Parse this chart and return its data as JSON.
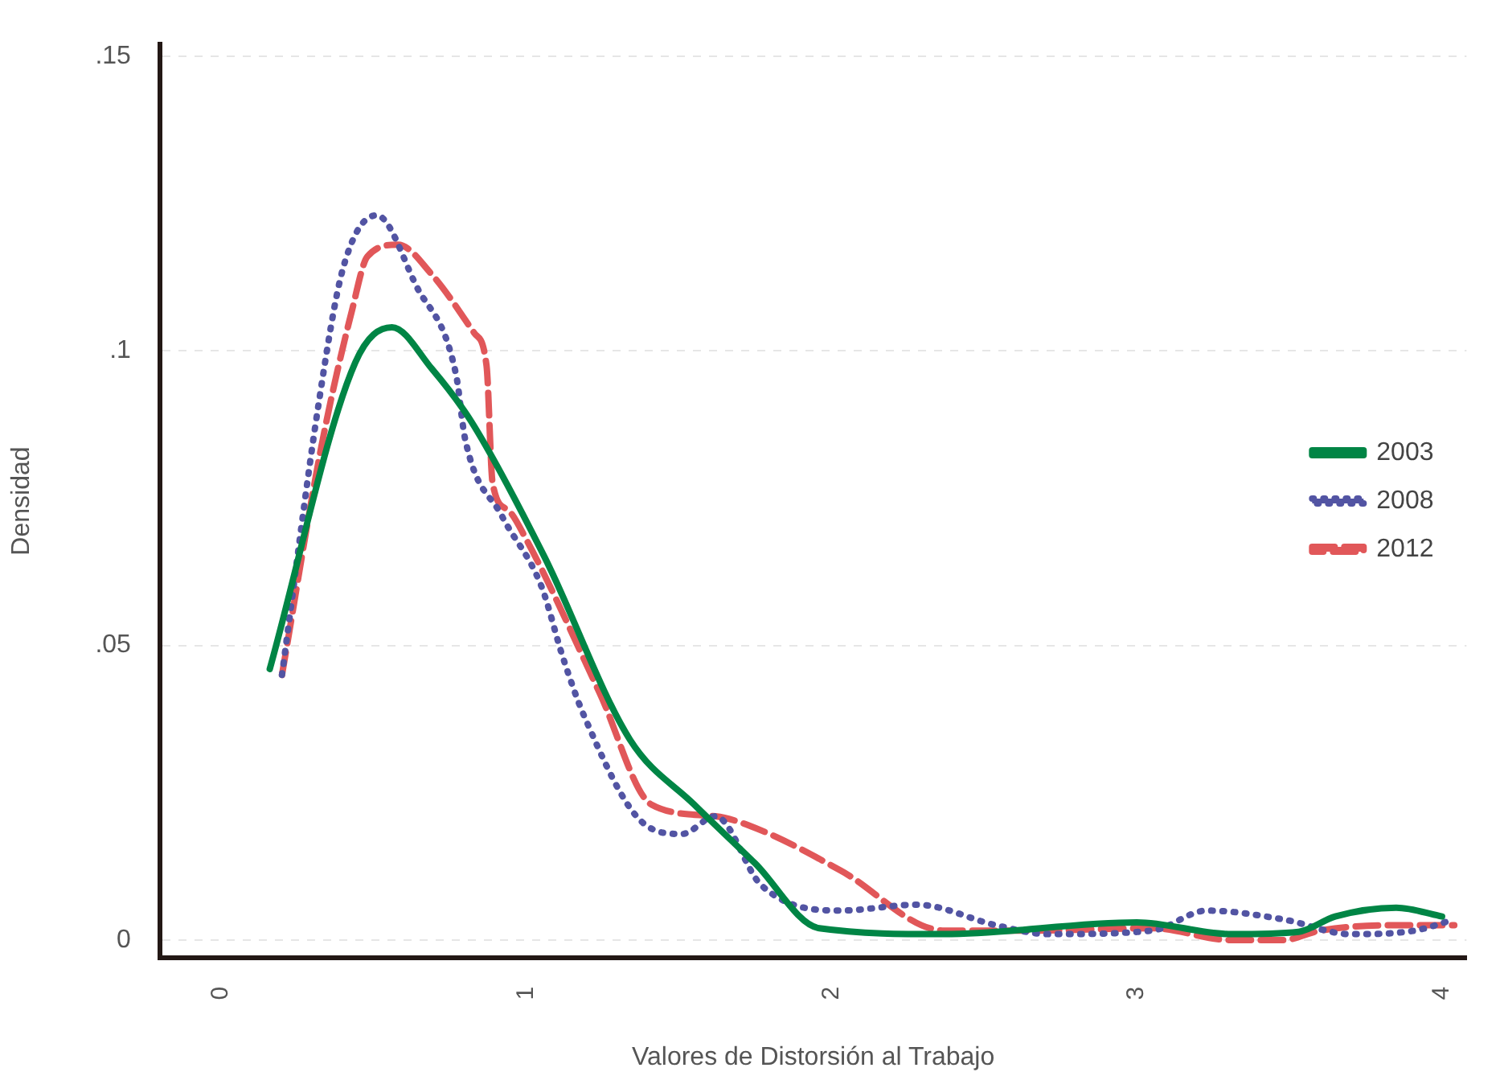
{
  "chart_data": {
    "type": "line",
    "xlabel": "Valores de Distorsión al Trabajo",
    "ylabel": "Densidad",
    "xlim": [
      -0.2,
      4.08
    ],
    "xticks": [
      0,
      1,
      2,
      3,
      4
    ],
    "ylim": [
      -0.003,
      0.152
    ],
    "yticks": [
      {
        "value": 0,
        "label": "0"
      },
      {
        "value": 0.05,
        "label": ".05"
      },
      {
        "value": 0.1,
        "label": ".1"
      },
      {
        "value": 0.15,
        "label": ".15"
      }
    ],
    "grid": "y",
    "legend": "right",
    "marker": "none",
    "series": [
      {
        "name": "2003",
        "color": "#008545",
        "line_style": "solid",
        "x": [
          0.16,
          0.44,
          0.56,
          0.69,
          0.82,
          1.06,
          1.34,
          1.55,
          1.75,
          1.96,
          2.37,
          3.0,
          3.31,
          3.53,
          3.65,
          3.85,
          4.0
        ],
        "values": [
          0.046,
          0.098,
          0.104,
          0.097,
          0.088,
          0.065,
          0.034,
          0.023,
          0.013,
          0.002,
          0.001,
          0.003,
          0.001,
          0.0014,
          0.004,
          0.0055,
          0.004
        ]
      },
      {
        "name": "2008",
        "color": "#5254a3",
        "line_style": "dotted",
        "x": [
          0.2,
          0.32,
          0.4,
          0.51,
          0.64,
          0.77,
          0.8,
          0.92,
          1.05,
          1.12,
          1.19,
          1.38,
          1.51,
          1.62,
          1.77,
          2.03,
          2.28,
          2.54,
          2.71,
          3.05,
          3.23,
          3.48,
          3.7,
          3.91,
          4.04
        ],
        "values": [
          0.045,
          0.091,
          0.114,
          0.123,
          0.111,
          0.096,
          0.085,
          0.072,
          0.06,
          0.048,
          0.038,
          0.02,
          0.018,
          0.021,
          0.0093,
          0.005,
          0.006,
          0.0025,
          0.001,
          0.0016,
          0.005,
          0.0035,
          0.001,
          0.0016,
          0.0035
        ]
      },
      {
        "name": "2012",
        "color": "#e15759",
        "line_style": "dashed",
        "x": [
          0.2,
          0.33,
          0.43,
          0.48,
          0.58,
          0.69,
          0.83,
          0.87,
          0.89,
          0.94,
          1.0,
          1.24,
          1.41,
          1.62,
          1.77,
          2.03,
          2.37,
          2.63,
          3.05,
          3.31,
          3.48,
          3.6,
          3.82,
          4.04
        ],
        "values": [
          0.045,
          0.084,
          0.107,
          0.116,
          0.118,
          0.113,
          0.103,
          0.0975,
          0.0775,
          0.073,
          0.068,
          0.042,
          0.023,
          0.021,
          0.0186,
          0.0118,
          0.0016,
          0.0016,
          0.002,
          0,
          0,
          0.0016,
          0.0025,
          0.0025
        ]
      }
    ]
  }
}
